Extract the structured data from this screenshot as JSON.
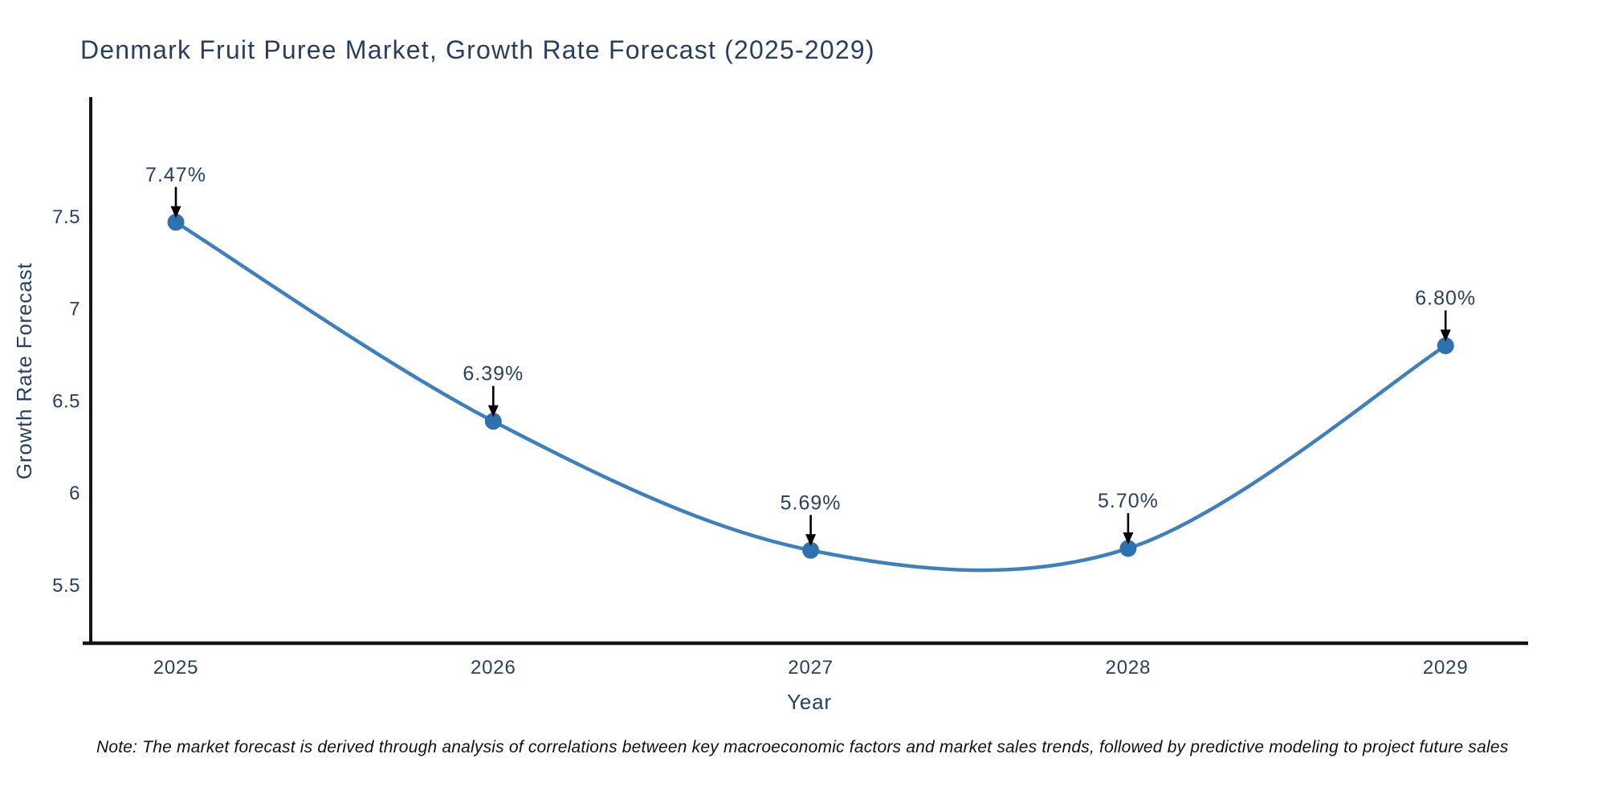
{
  "title": "Denmark Fruit Puree Market, Growth Rate Forecast (2025-2029)",
  "note": "Note: The market forecast is derived through analysis of correlations between key macroeconomic factors and market sales trends, followed by predictive modeling to project future sales",
  "chart_data": {
    "type": "line",
    "title": "Denmark Fruit Puree Market, Growth Rate Forecast (2025-2029)",
    "xlabel": "Year",
    "ylabel": "Growth Rate Forecast",
    "categories": [
      "2025",
      "2026",
      "2027",
      "2028",
      "2029"
    ],
    "values": [
      7.47,
      6.39,
      5.69,
      5.7,
      6.8
    ],
    "point_labels": [
      "7.47%",
      "6.39%",
      "5.69%",
      "5.70%",
      "6.80%"
    ],
    "ytick_labels": [
      "7.5",
      "7",
      "6.5",
      "6",
      "5.5"
    ],
    "ytick_values": [
      7.5,
      7.0,
      6.5,
      6.0,
      5.5
    ],
    "ylim": [
      5.18,
      8.14
    ],
    "line_shape": "spline",
    "grid": false,
    "legend_position": "none",
    "annotation_style": "arrow-down-to-point",
    "colors": {
      "line": "#3f7fba",
      "marker": "#2e71ae",
      "axis": "#141414",
      "text": "#2a3f5f",
      "annotation_arrow": "#000000",
      "background": "#ffffff"
    }
  }
}
